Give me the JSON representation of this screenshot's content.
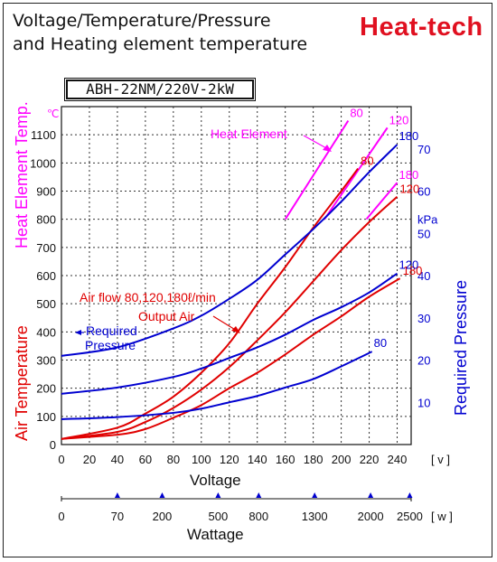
{
  "title_line1": "Voltage∕Temperature∕Pressure",
  "title_line2": "and Heating element temperature",
  "brand": "Heat-tech",
  "model": "ABH-22NM/220V-2kW",
  "chart_data": {
    "type": "line",
    "x_axis": {
      "label": "Voltage",
      "unit": "[v]",
      "range": [
        0,
        250
      ],
      "ticks": [
        "0",
        "20",
        "40",
        "60",
        "80",
        "100",
        "120",
        "140",
        "160",
        "180",
        "200",
        "220",
        "240"
      ]
    },
    "left_axis": {
      "label_top": "Heat Element Temp.",
      "label_bottom": "Air Temperature",
      "unit": "℃",
      "range": [
        0,
        1200
      ],
      "ticks": [
        "0",
        "100",
        "200",
        "300",
        "400",
        "500",
        "600",
        "700",
        "800",
        "900",
        "1000",
        "1100"
      ]
    },
    "right_axis": {
      "label": "Required Pressure",
      "unit": "kPa",
      "range": [
        0,
        80
      ],
      "ticks": [
        "10",
        "20",
        "30",
        "40",
        "50",
        "60",
        "70"
      ]
    },
    "wattage_axis": {
      "label": "Wattage",
      "unit": "[w]",
      "ticks": [
        {
          "label": "0",
          "voltage": 0
        },
        {
          "label": "70",
          "voltage": 40
        },
        {
          "label": "200",
          "voltage": 72
        },
        {
          "label": "500",
          "voltage": 112
        },
        {
          "label": "800",
          "voltage": 141
        },
        {
          "label": "1300",
          "voltage": 181
        },
        {
          "label": "2000",
          "voltage": 221
        },
        {
          "label": "2500",
          "voltage": 249
        }
      ]
    },
    "grid": true,
    "annotations": {
      "heat_element": "Heat Element",
      "air_flow": "Air flow 80,120,180ℓ/min",
      "output_air": "Output Air",
      "required_pressure_1": "Required",
      "required_pressure_2": "Pressure"
    },
    "series": [
      {
        "group": "heat_element",
        "axis": "left",
        "color": "#ff00ff",
        "label": "80",
        "points": [
          [
            160,
            800
          ],
          [
            205,
            1150
          ]
        ]
      },
      {
        "group": "heat_element",
        "axis": "left",
        "color": "#ff00ff",
        "label": "120",
        "points": [
          [
            188,
            800
          ],
          [
            233,
            1125
          ]
        ]
      },
      {
        "group": "heat_element",
        "axis": "left",
        "color": "#ff00ff",
        "label": "180",
        "points": [
          [
            218,
            800
          ],
          [
            240,
            930
          ]
        ]
      },
      {
        "group": "output_air",
        "axis": "left",
        "color": "#e00000",
        "label": "80",
        "points": [
          [
            0,
            20
          ],
          [
            40,
            60
          ],
          [
            60,
            110
          ],
          [
            80,
            170
          ],
          [
            100,
            255
          ],
          [
            120,
            360
          ],
          [
            140,
            500
          ],
          [
            160,
            630
          ],
          [
            180,
            770
          ],
          [
            200,
            900
          ],
          [
            212,
            980
          ]
        ]
      },
      {
        "group": "output_air",
        "axis": "left",
        "color": "#e00000",
        "label": "120",
        "points": [
          [
            0,
            20
          ],
          [
            40,
            45
          ],
          [
            60,
            80
          ],
          [
            80,
            130
          ],
          [
            100,
            195
          ],
          [
            120,
            275
          ],
          [
            140,
            370
          ],
          [
            160,
            470
          ],
          [
            180,
            580
          ],
          [
            200,
            690
          ],
          [
            220,
            790
          ],
          [
            240,
            880
          ]
        ]
      },
      {
        "group": "output_air",
        "axis": "left",
        "color": "#e00000",
        "label": "180",
        "points": [
          [
            0,
            20
          ],
          [
            40,
            35
          ],
          [
            60,
            55
          ],
          [
            80,
            95
          ],
          [
            100,
            140
          ],
          [
            120,
            200
          ],
          [
            140,
            255
          ],
          [
            160,
            320
          ],
          [
            180,
            390
          ],
          [
            200,
            455
          ],
          [
            220,
            525
          ],
          [
            242,
            590
          ]
        ]
      },
      {
        "group": "pressure",
        "axis": "right",
        "color": "#0000d0",
        "label": "180",
        "points": [
          [
            0,
            21
          ],
          [
            40,
            23
          ],
          [
            80,
            27.5
          ],
          [
            100,
            30.5
          ],
          [
            120,
            34.5
          ],
          [
            140,
            39
          ],
          [
            160,
            45
          ],
          [
            180,
            51
          ],
          [
            200,
            57.5
          ],
          [
            220,
            64.5
          ],
          [
            240,
            71
          ]
        ]
      },
      {
        "group": "pressure",
        "axis": "right",
        "color": "#0000d0",
        "label": "120",
        "points": [
          [
            0,
            12
          ],
          [
            40,
            13.5
          ],
          [
            80,
            16
          ],
          [
            100,
            18
          ],
          [
            120,
            20.5
          ],
          [
            140,
            23
          ],
          [
            160,
            26
          ],
          [
            180,
            29.5
          ],
          [
            200,
            32.5
          ],
          [
            220,
            36
          ],
          [
            240,
            40.5
          ]
        ]
      },
      {
        "group": "pressure",
        "axis": "right",
        "color": "#0000d0",
        "label": "80",
        "points": [
          [
            0,
            6
          ],
          [
            40,
            6.5
          ],
          [
            80,
            7.5
          ],
          [
            100,
            8.5
          ],
          [
            120,
            10
          ],
          [
            140,
            11.5
          ],
          [
            160,
            13.5
          ],
          [
            180,
            15.5
          ],
          [
            200,
            18.5
          ],
          [
            222,
            22
          ]
        ]
      }
    ]
  },
  "colors": {
    "magenta": "#ff00ff",
    "red": "#e00000",
    "blue": "#0000d0",
    "brand": "#e01020"
  }
}
